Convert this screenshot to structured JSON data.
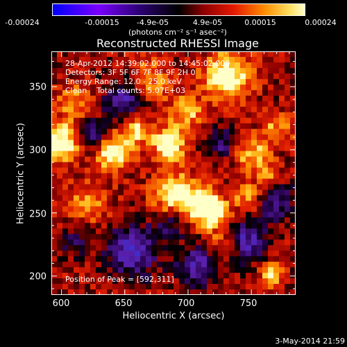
{
  "chart_data": {
    "type": "heatmap",
    "title": "Reconstructed RHESSI Image",
    "xlabel": "Heliocentric X (arcsec)",
    "ylabel": "Heliocentric Y (arcsec)",
    "x_ticks": [
      "600",
      "650",
      "700",
      "750"
    ],
    "y_ticks": [
      "200",
      "250",
      "300",
      "350"
    ],
    "xlim": [
      592,
      785
    ],
    "ylim": [
      185,
      378
    ],
    "colorbar": {
      "unit_label": "(photons cm⁻² s⁻¹ asec⁻²)",
      "ticks": [
        "-0.00024",
        "-0.00015",
        "-4.9e-05",
        "4.9e-05",
        "0.00015",
        "0.00024"
      ],
      "range": [
        -0.00024,
        0.00024
      ],
      "colors": [
        "#0000ff",
        "#7a00ff",
        "#000000",
        "#d40000",
        "#ff8c00",
        "#ffffaa"
      ]
    },
    "annotations": [
      "28-Apr-2012 14:39:02.000 to 14:45:02.000",
      "Detectors: 3F 5F 6F 7F 8F 9F 2H 0",
      "Energy Range: 12.0 - 25.0 keV",
      "Clean    Total counts: 5.07E+03",
      "Position of Peak = [592,311]"
    ],
    "footer_date": "3-May-2014 21:59"
  }
}
